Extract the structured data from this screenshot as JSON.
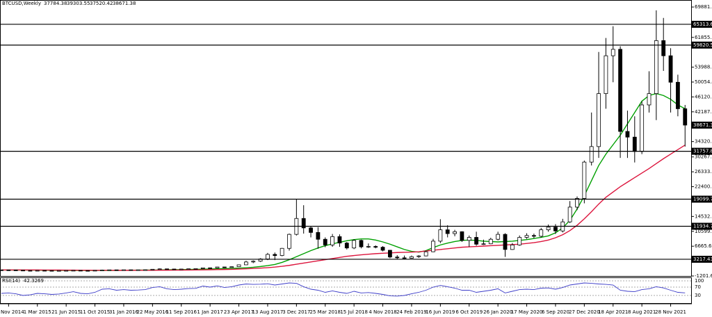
{
  "chart_data": [
    {
      "type": "candlestick",
      "title": "BTCUSD,Weekly",
      "header_ohlc": [
        37784.38,
        39303.55,
        37520.42
      ],
      "categories": [
        null,
        "Nov 2014",
        null,
        null,
        null,
        "1 Mar 2015",
        null,
        null,
        null,
        "21 Jun 2015",
        null,
        null,
        null,
        "11 Oct 2015",
        null,
        null,
        null,
        "31 Jan 2016",
        null,
        null,
        null,
        "22 May 2016",
        null,
        null,
        null,
        "11 Sep 2016",
        null,
        null,
        null,
        "1 Jan 2017",
        null,
        null,
        null,
        "23 Apr 2017",
        null,
        null,
        null,
        "13 Aug 2017",
        null,
        null,
        null,
        "3 Dec 2017",
        null,
        null,
        null,
        "25 Mar 2018",
        null,
        null,
        null,
        "15 Jul 2018",
        null,
        null,
        null,
        "4 Nov 2018",
        null,
        null,
        null,
        "24 Feb 2019",
        null,
        null,
        null,
        "16 Jun 2019",
        null,
        null,
        null,
        "6 Oct 2019",
        null,
        null,
        null,
        "26 Jan 2020",
        null,
        null,
        null,
        "17 May 2020",
        null,
        null,
        null,
        "6 Sep 2020",
        null,
        null,
        null,
        "27 Dec 2020",
        null,
        null,
        null,
        "18 Apr 2021",
        null,
        null,
        null,
        "8 Aug 2021",
        null,
        null,
        null,
        "28 Nov 2021",
        null,
        null
      ],
      "open": [
        400,
        390,
        375,
        320,
        260,
        235,
        270,
        245,
        225,
        235,
        255,
        285,
        240,
        235,
        285,
        380,
        420,
        380,
        435,
        415,
        425,
        450,
        580,
        680,
        640,
        610,
        640,
        700,
        740,
        950,
        920,
        1180,
        1050,
        1250,
        1750,
        2500,
        2700,
        3300,
        4500,
        4200,
        6100,
        9800,
        14000,
        11500,
        10300,
        8500,
        7000,
        9200,
        7500,
        6200,
        8200,
        6500,
        6600,
        6400,
        5600,
        3800,
        3600,
        3500,
        3900,
        4100,
        5200,
        8000,
        11000,
        10000,
        10500,
        8200,
        9000,
        7200,
        7300,
        8500,
        9800,
        5800,
        7000,
        9000,
        9500,
        9300,
        11000,
        11700,
        10700,
        13100,
        17000,
        19300,
        28900,
        33000,
        47000,
        57000,
        58700,
        37000,
        35500,
        31700,
        44000,
        47000,
        61000,
        57000,
        50000,
        43000
      ],
      "high": [
        420,
        410,
        385,
        330,
        265,
        290,
        275,
        250,
        245,
        270,
        300,
        290,
        250,
        300,
        500,
        460,
        430,
        445,
        440,
        470,
        540,
        600,
        780,
        690,
        660,
        660,
        720,
        760,
        1000,
        980,
        1200,
        1200,
        1300,
        1800,
        2800,
        2900,
        3500,
        4900,
        5000,
        6200,
        10000,
        19099.73,
        17500,
        12000,
        11700,
        9000,
        9900,
        9800,
        7800,
        8500,
        8400,
        7400,
        6900,
        6700,
        5700,
        4300,
        4200,
        4200,
        4300,
        5500,
        8600,
        13800,
        12200,
        11000,
        10600,
        9500,
        10500,
        8400,
        8900,
        10500,
        10100,
        7500,
        9500,
        10100,
        10000,
        11500,
        12400,
        12500,
        13900,
        18600,
        19800,
        29300,
        42000,
        58000,
        61700,
        64800,
        59500,
        42500,
        41000,
        45000,
        52900,
        69000,
        67000,
        59000,
        52000,
        44000
      ],
      "low": [
        360,
        345,
        300,
        170,
        215,
        230,
        235,
        215,
        220,
        230,
        250,
        220,
        225,
        230,
        285,
        350,
        360,
        370,
        400,
        410,
        420,
        440,
        560,
        580,
        590,
        600,
        600,
        690,
        720,
        780,
        900,
        900,
        1000,
        1200,
        1700,
        2200,
        2500,
        3000,
        3000,
        4000,
        5500,
        9500,
        10000,
        9000,
        6000,
        6400,
        6500,
        6500,
        5800,
        5900,
        6100,
        6200,
        6100,
        5300,
        3500,
        3200,
        3300,
        3400,
        3600,
        4000,
        5100,
        7500,
        9000,
        9300,
        7800,
        6500,
        6800,
        7000,
        7200,
        8200,
        3850,
        5700,
        6800,
        8600,
        8800,
        9000,
        10500,
        9900,
        10300,
        12800,
        16200,
        18000,
        28000,
        30000,
        43000,
        50000,
        30000,
        30000,
        28800,
        31000,
        42000,
        40000,
        53000,
        42000,
        41000,
        33000
      ],
      "close": [
        390,
        375,
        320,
        260,
        235,
        270,
        245,
        225,
        235,
        255,
        285,
        240,
        235,
        285,
        380,
        420,
        380,
        435,
        415,
        425,
        450,
        580,
        680,
        640,
        610,
        640,
        700,
        740,
        950,
        920,
        1180,
        1050,
        1250,
        1750,
        2500,
        2700,
        3300,
        4500,
        4200,
        6100,
        9800,
        14000,
        11500,
        10300,
        8500,
        7000,
        9200,
        7500,
        6200,
        8200,
        6500,
        6600,
        6400,
        5600,
        3800,
        3600,
        3500,
        3900,
        4100,
        5200,
        8000,
        11000,
        10000,
        10500,
        8200,
        9000,
        7200,
        7300,
        8500,
        9800,
        5800,
        7000,
        9000,
        9500,
        9300,
        11000,
        11700,
        10700,
        13100,
        17000,
        19300,
        28900,
        33000,
        47000,
        57000,
        58700,
        37000,
        35500,
        31700,
        44000,
        47000,
        61000,
        57000,
        50000,
        43000,
        38671.38
      ],
      "moving_averages": [
        {
          "color": "#00a000",
          "values": [
            380,
            370,
            360,
            350,
            340,
            320,
            300,
            290,
            280,
            270,
            260,
            255,
            250,
            250,
            255,
            265,
            280,
            300,
            320,
            340,
            360,
            380,
            400,
            430,
            460,
            490,
            520,
            560,
            600,
            640,
            690,
            740,
            800,
            880,
            970,
            1100,
            1300,
            1550,
            1850,
            2400,
            3100,
            3900,
            4700,
            5500,
            6200,
            6800,
            7300,
            7700,
            8100,
            8400,
            8600,
            8600,
            8300,
            7800,
            7200,
            6500,
            5800,
            5300,
            5100,
            5500,
            6300,
            7000,
            7500,
            7900,
            8200,
            8300,
            8200,
            8000,
            7900,
            7800,
            7900,
            8000,
            8200,
            8400,
            8700,
            9000,
            9400,
            10200,
            11500,
            13500,
            16500,
            20000,
            24000,
            28000,
            31000,
            33500,
            36000,
            39000,
            42000,
            45000,
            46500,
            47000,
            46500,
            45500,
            44000,
            43000
          ]
        },
        {
          "color": "#dc143c",
          "values": [
            400,
            400,
            400,
            400,
            395,
            390,
            380,
            370,
            360,
            350,
            340,
            330,
            320,
            310,
            300,
            295,
            290,
            290,
            290,
            295,
            300,
            310,
            320,
            330,
            345,
            360,
            380,
            400,
            420,
            450,
            480,
            520,
            560,
            620,
            690,
            780,
            880,
            1000,
            1150,
            1350,
            1600,
            1900,
            2200,
            2500,
            2800,
            3100,
            3400,
            3700,
            4000,
            4200,
            4400,
            4550,
            4700,
            4800,
            4900,
            5000,
            5050,
            5100,
            5200,
            5400,
            5600,
            5800,
            6000,
            6200,
            6400,
            6500,
            6600,
            6700,
            6800,
            6900,
            7000,
            7100,
            7200,
            7400,
            7600,
            7900,
            8300,
            8900,
            9700,
            10800,
            12200,
            13900,
            15800,
            17800,
            19600,
            21000,
            22400,
            23600,
            24800,
            26000,
            27200,
            28500,
            29800,
            31000,
            32200,
            33400
          ]
        }
      ],
      "levels": [
        65313.65,
        59820.52,
        31757.83,
        19099.73,
        11934.79,
        3217.43
      ],
      "ylim": [
        -1201.6,
        71000
      ],
      "yticks": [
        {
          "value": 69881.64,
          "label": "69881.64"
        },
        {
          "value": 61855.2,
          "label": "61855.20"
        },
        {
          "value": 53988,
          "label": "53988.00"
        },
        {
          "value": 50054.4,
          "label": "50054.40"
        },
        {
          "value": 46120.8,
          "label": "46120.80"
        },
        {
          "value": 42187.2,
          "label": "42187.20"
        },
        {
          "value": 34320,
          "label": "34320.00"
        },
        {
          "value": 30267.2,
          "label": "30267.20"
        },
        {
          "value": 26333.6,
          "label": "26333.60"
        },
        {
          "value": 22400,
          "label": "22400.00"
        },
        {
          "value": 14532.8,
          "label": "14532.80"
        },
        {
          "value": 10599.2,
          "label": "10599.20"
        },
        {
          "value": 6665.6,
          "label": "6665.60"
        },
        {
          "value": -1201.6,
          "label": "-1201.60"
        }
      ]
    },
    {
      "type": "line",
      "title": "RSI(14)",
      "color": "#3a3ac8",
      "values": [
        40,
        42,
        38,
        30,
        33,
        40,
        38,
        35,
        37,
        42,
        48,
        40,
        38,
        45,
        60,
        62,
        55,
        58,
        55,
        56,
        58,
        68,
        72,
        62,
        58,
        60,
        63,
        64,
        75,
        70,
        76,
        68,
        72,
        80,
        85,
        83,
        84,
        86,
        80,
        85,
        90,
        88,
        72,
        60,
        55,
        45,
        52,
        45,
        40,
        50,
        42,
        44,
        40,
        35,
        28,
        27,
        30,
        38,
        45,
        55,
        70,
        78,
        72,
        65,
        55,
        55,
        45,
        50,
        55,
        62,
        42,
        50,
        58,
        60,
        58,
        65,
        66,
        60,
        68,
        80,
        85,
        90,
        88,
        85,
        83,
        80,
        55,
        50,
        48,
        58,
        62,
        72,
        66,
        55,
        45,
        42.3269
      ],
      "ylim": [
        0,
        100
      ],
      "yticks": [
        100,
        70,
        30
      ],
      "grid": true
    }
  ]
}
